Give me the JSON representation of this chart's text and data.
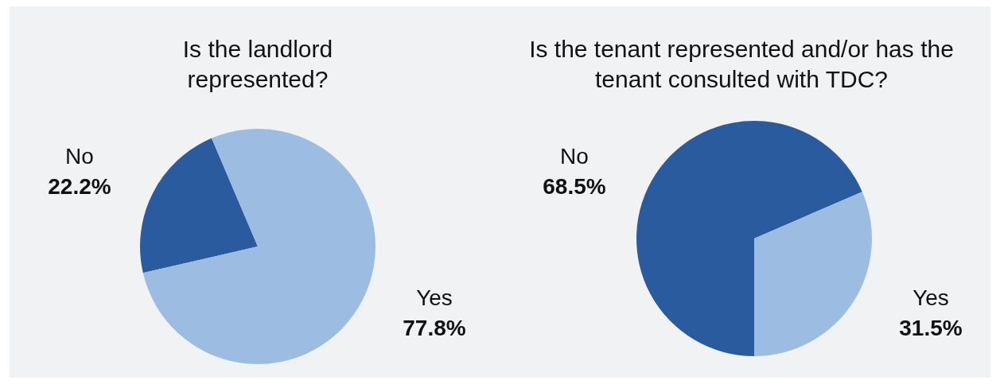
{
  "chart_data": [
    {
      "type": "pie",
      "title": "Is the landlord represented?",
      "categories": [
        "No",
        "Yes"
      ],
      "values": [
        22.2,
        77.8
      ],
      "colors": [
        "#2a5b9f",
        "#9dbce2"
      ],
      "value_labels": [
        "22.2%",
        "77.8%"
      ]
    },
    {
      "type": "pie",
      "title": "Is the tenant represented and/or has the tenant consulted with TDC?",
      "categories": [
        "No",
        "Yes"
      ],
      "values": [
        68.5,
        31.5
      ],
      "colors": [
        "#2a5b9f",
        "#9dbce2"
      ],
      "value_labels": [
        "68.5%",
        "31.5%"
      ]
    }
  ]
}
